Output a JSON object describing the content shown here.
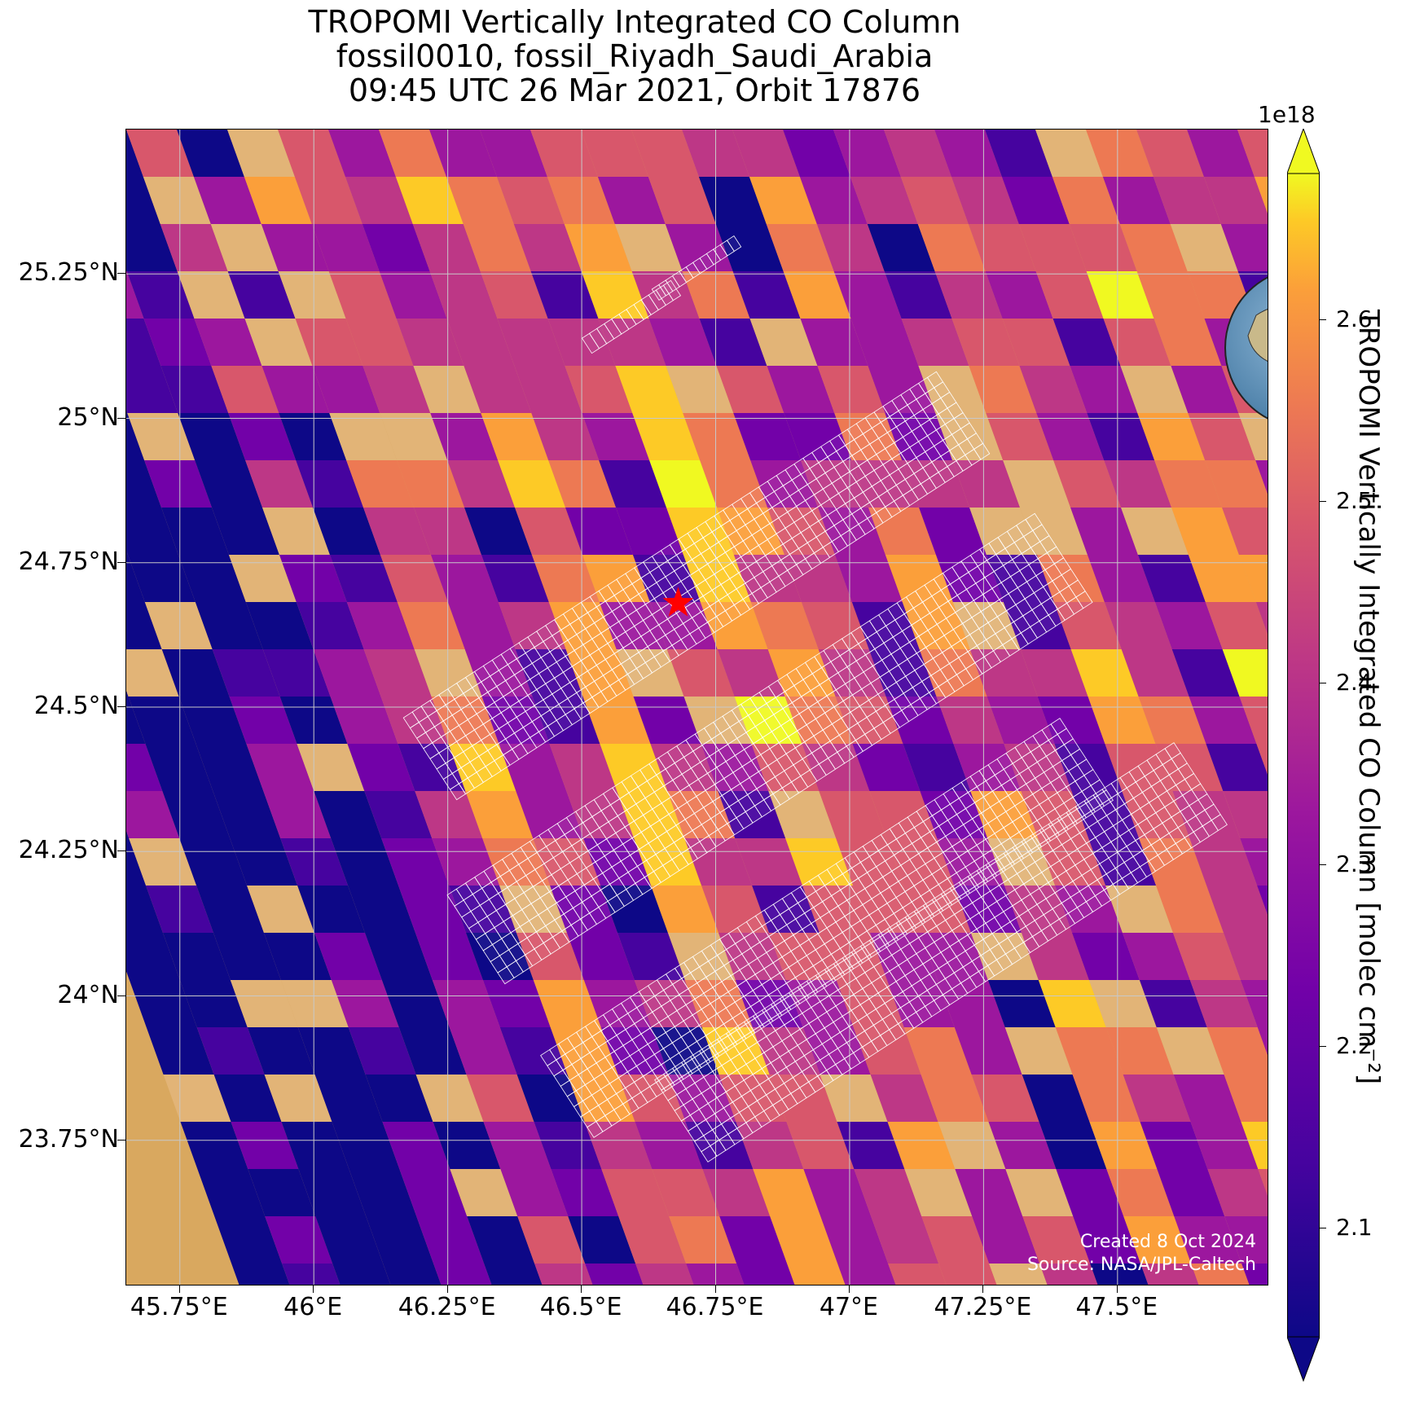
{
  "title": {
    "line1": "TROPOMI Vertically Integrated CO Column",
    "line2": "fossil0010, fossil_Riyadh_Saudi_Arabia",
    "line3": "09:45 UTC 26 Mar 2021, Orbit 17876"
  },
  "map": {
    "lon_range": [
      45.65,
      47.78
    ],
    "lat_range": [
      23.5,
      25.5
    ],
    "lat_labels": [
      "25.25°N",
      "25°N",
      "24.75°N",
      "24.5°N",
      "24.25°N",
      "24°N",
      "23.75°N"
    ],
    "lon_labels": [
      "45.75°E",
      "46°E",
      "46.25°E",
      "46.5°E",
      "46.75°E",
      "47°E",
      "47.25°E",
      "47.5°E"
    ],
    "lat_values": [
      25.25,
      25.0,
      24.75,
      24.5,
      24.25,
      24.0,
      23.75
    ],
    "lon_values": [
      45.75,
      46.0,
      46.25,
      46.5,
      46.75,
      47.0,
      47.25,
      47.5
    ],
    "target_marker": {
      "lon": 46.68,
      "lat": 24.68,
      "symbol": "star",
      "color": "#ff0000"
    },
    "pixel_colormap": "plasma",
    "overlay_grid_color": "#ffffff",
    "gridlines": true
  },
  "credit": {
    "line1": "Created 8 Oct 2024",
    "line2": "Source: NASA/JPL-Caltech"
  },
  "colorbar": {
    "label": "TROPOMI Vertically Integrated CO Column [molec cm⁻²]",
    "exponent": "1e18",
    "ticks": [
      "2.1",
      "2.2",
      "2.3",
      "2.4",
      "2.5",
      "2.6"
    ],
    "tick_values": [
      2.1,
      2.2,
      2.3,
      2.4,
      2.5,
      2.6
    ],
    "range": [
      2.04,
      2.68
    ],
    "extend": "both"
  },
  "inset_globe": {
    "marker_color": "#ff0000",
    "marker_symbol": "star"
  }
}
